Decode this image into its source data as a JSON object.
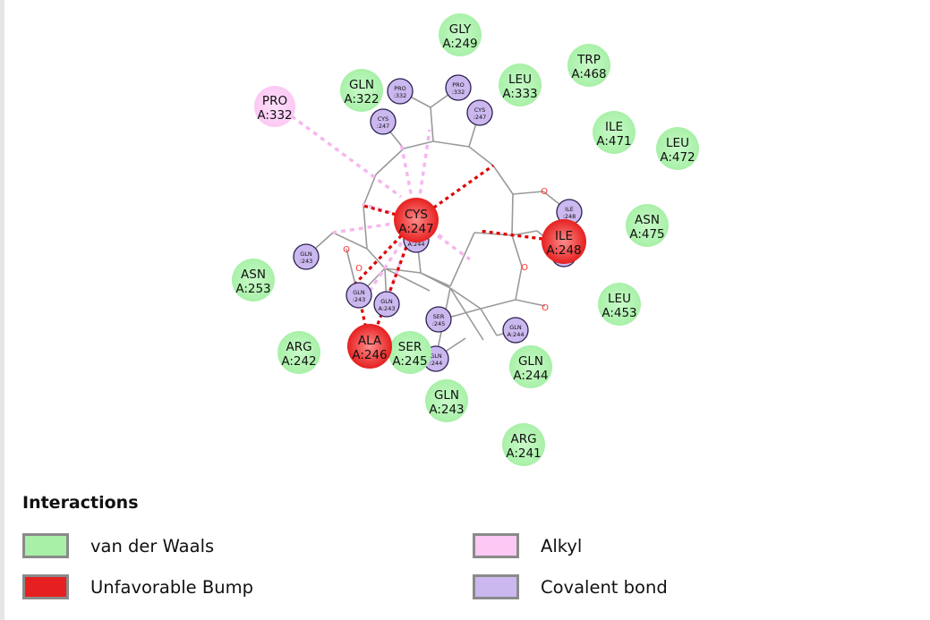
{
  "colors": {
    "vdw_fill": "#a8f0a8",
    "vdw_core": "#c8fac8",
    "bump_fill": "#e62020",
    "bump_core": "#ff8c8c",
    "alkyl_fill": "#fcc8f4",
    "alkyl_core": "#ffe0fb",
    "covalent_fill": "#cbb8ef",
    "covalent_stroke": "#2a2050",
    "bond_line": "#9a9a9a",
    "bump_dash": "#e00000",
    "alkyl_dash": "#f6b7ef",
    "oxygen": "#ff3030"
  },
  "residues": [
    {
      "name": "GLY",
      "num": "A:249",
      "type": "vdw"
    },
    {
      "name": "TRP",
      "num": "A:468",
      "type": "vdw"
    },
    {
      "name": "LEU",
      "num": "A:333",
      "type": "vdw"
    },
    {
      "name": "GLN",
      "num": "A:322",
      "type": "vdw"
    },
    {
      "name": "PRO",
      "num": "A:332",
      "type": "alkyl"
    },
    {
      "name": "ILE",
      "num": "A:471",
      "type": "vdw"
    },
    {
      "name": "LEU",
      "num": "A:472",
      "type": "vdw"
    },
    {
      "name": "ASN",
      "num": "A:475",
      "type": "vdw"
    },
    {
      "name": "LEU",
      "num": "A:453",
      "type": "vdw"
    },
    {
      "name": "ASN",
      "num": "A:253",
      "type": "vdw"
    },
    {
      "name": "ARG",
      "num": "A:242",
      "type": "vdw"
    },
    {
      "name": "SER",
      "num": "A:245",
      "type": "vdw"
    },
    {
      "name": "GLN",
      "num": "A:244",
      "type": "vdw"
    },
    {
      "name": "GLN",
      "num": "A:243",
      "type": "vdw"
    },
    {
      "name": "ARG",
      "num": "A:241",
      "type": "vdw"
    },
    {
      "name": "CYS",
      "num": "A:247",
      "type": "bump"
    },
    {
      "name": "ILE",
      "num": "A:248",
      "type": "bump"
    },
    {
      "name": "ALA",
      "num": "A:246",
      "type": "bump"
    }
  ],
  "ligand_atoms": [
    {
      "name": "PRO",
      "num": ":332"
    },
    {
      "name": "PRO",
      "num": ":332"
    },
    {
      "name": "CYS",
      "num": ":247"
    },
    {
      "name": "CYS",
      "num": ":247"
    },
    {
      "name": "ILE",
      "num": ":248"
    },
    {
      "name": "ILE",
      "num": ":248"
    },
    {
      "name": "GLN",
      "num": ":243"
    },
    {
      "name": "GLN",
      "num": "A:243"
    },
    {
      "name": "GLN",
      "num": ":243"
    },
    {
      "name": "GLN",
      "num": "A:244"
    },
    {
      "name": "SER",
      "num": ":245"
    },
    {
      "name": "GLN",
      "num": ":244"
    },
    {
      "name": "GLN",
      "num": "A:244"
    }
  ],
  "atom_letters": [
    "O",
    "O",
    "O",
    "O",
    "O"
  ],
  "legend": {
    "title": "Interactions",
    "items": [
      {
        "label": "van der Waals",
        "type": "vdw"
      },
      {
        "label": "Alkyl",
        "type": "alkyl"
      },
      {
        "label": "Unfavorable Bump",
        "type": "bump"
      },
      {
        "label": "Covalent bond",
        "type": "covalent"
      }
    ]
  }
}
